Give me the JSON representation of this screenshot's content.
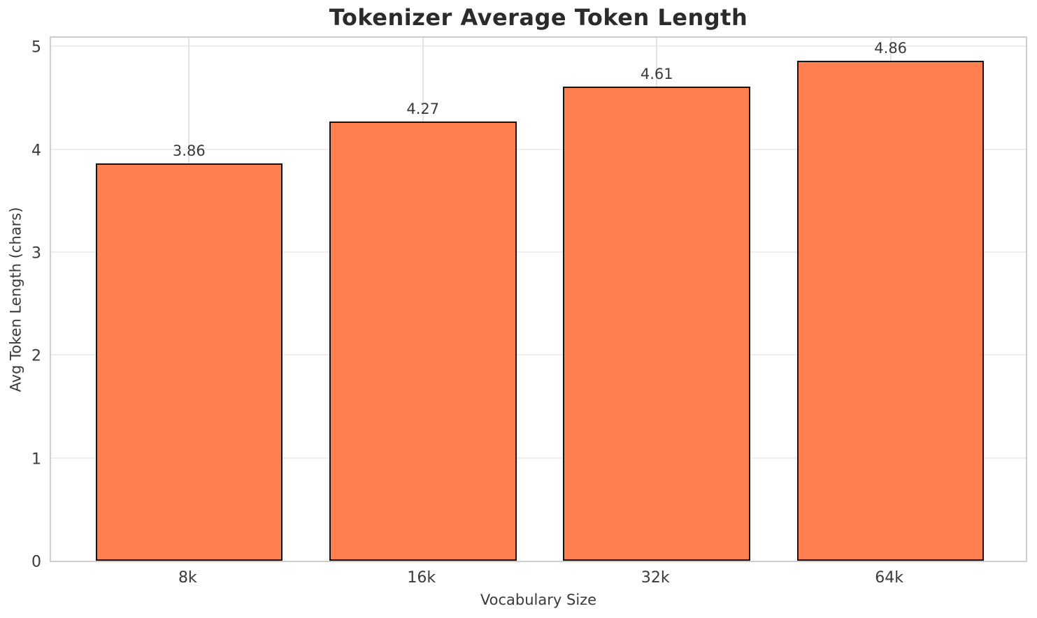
{
  "chart_data": {
    "type": "bar",
    "title": "Tokenizer Average Token Length",
    "xlabel": "Vocabulary Size",
    "ylabel": "Avg Token Length (chars)",
    "categories": [
      "8k",
      "16k",
      "32k",
      "64k"
    ],
    "values": [
      3.86,
      4.27,
      4.61,
      4.86
    ],
    "value_labels": [
      "3.86",
      "4.27",
      "4.61",
      "4.86"
    ],
    "yticks": [
      0,
      1,
      2,
      3,
      4,
      5
    ],
    "ylim": [
      0,
      5.11
    ],
    "xlim": [
      -0.59,
      3.59
    ],
    "bar_width_data_units": 0.8,
    "grid": true,
    "legend_position": "none",
    "colors": {
      "bar_fill": "#FF7F50",
      "bar_edge": "#141414",
      "grid_horizontal": "#eeeeee",
      "grid_vertical": "#e4e4e4",
      "spine": "#cdcdcd",
      "title_text": "#2b2b2b",
      "tick_text": "#3a3a3a",
      "background": "#ffffff"
    }
  }
}
